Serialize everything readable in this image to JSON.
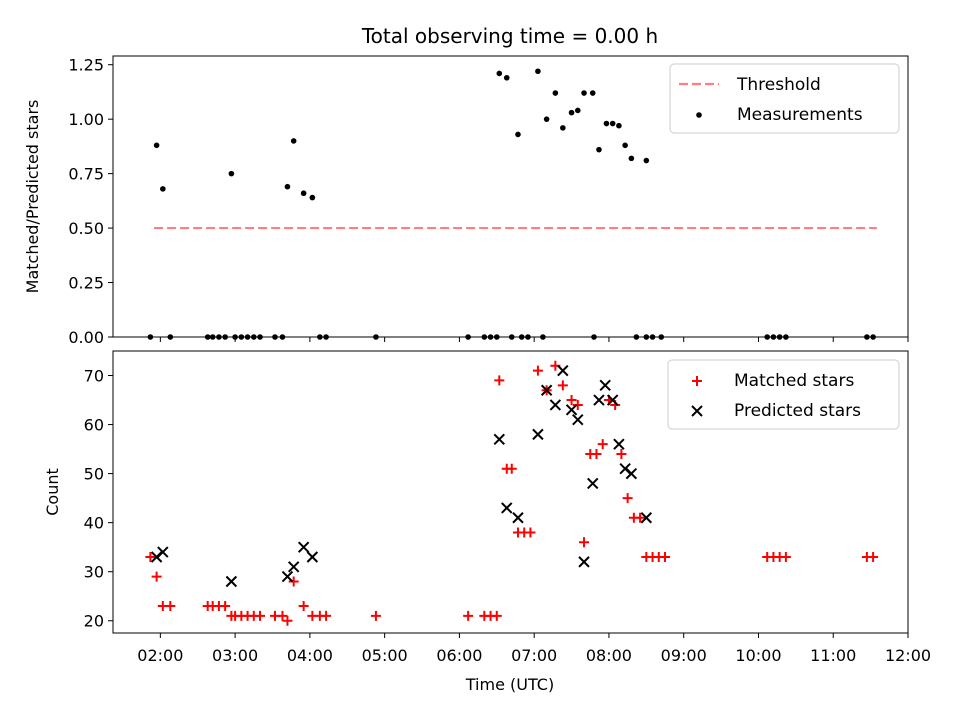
{
  "title": "Total observing time = 0.00 h",
  "chart_data": [
    {
      "type": "scatter",
      "panel": "top",
      "ylabel": "Matched/Predicted stars",
      "ylim": [
        0,
        1.29
      ],
      "yticks": [
        "0.00",
        "0.25",
        "0.50",
        "0.75",
        "1.00",
        "1.25"
      ],
      "threshold": {
        "name": "Threshold",
        "value": 0.5,
        "x_range": [
          "01:55",
          "11:35"
        ],
        "color": "#ff7f7f"
      },
      "series": [
        {
          "name": "Measurements",
          "color": "#000000",
          "marker": "dot",
          "points": [
            [
              "01:57",
              0.88
            ],
            [
              "02:02",
              0.68
            ],
            [
              "02:57",
              0.75
            ],
            [
              "03:42",
              0.69
            ],
            [
              "03:47",
              0.9
            ],
            [
              "03:55",
              0.66
            ],
            [
              "04:02",
              0.64
            ],
            [
              "06:32",
              1.21
            ],
            [
              "06:38",
              1.19
            ],
            [
              "06:47",
              0.93
            ],
            [
              "07:03",
              1.22
            ],
            [
              "07:10",
              1.0
            ],
            [
              "07:17",
              1.12
            ],
            [
              "07:23",
              0.96
            ],
            [
              "07:30",
              1.03
            ],
            [
              "07:35",
              1.04
            ],
            [
              "07:40",
              1.12
            ],
            [
              "07:47",
              1.12
            ],
            [
              "07:52",
              0.86
            ],
            [
              "07:58",
              0.98
            ],
            [
              "08:03",
              0.98
            ],
            [
              "08:08",
              0.97
            ],
            [
              "08:13",
              0.88
            ],
            [
              "08:18",
              0.82
            ],
            [
              "08:30",
              0.81
            ],
            [
              "01:52",
              0
            ],
            [
              "02:08",
              0
            ],
            [
              "02:38",
              0
            ],
            [
              "02:42",
              0
            ],
            [
              "02:47",
              0
            ],
            [
              "02:52",
              0
            ],
            [
              "03:00",
              0
            ],
            [
              "03:05",
              0
            ],
            [
              "03:10",
              0
            ],
            [
              "03:15",
              0
            ],
            [
              "03:20",
              0
            ],
            [
              "03:32",
              0
            ],
            [
              "03:38",
              0
            ],
            [
              "04:08",
              0
            ],
            [
              "04:13",
              0
            ],
            [
              "04:53",
              0
            ],
            [
              "06:07",
              0
            ],
            [
              "06:20",
              0
            ],
            [
              "06:25",
              0
            ],
            [
              "06:30",
              0
            ],
            [
              "06:42",
              0
            ],
            [
              "06:50",
              0
            ],
            [
              "06:55",
              0
            ],
            [
              "07:07",
              0
            ],
            [
              "07:48",
              0
            ],
            [
              "08:22",
              0
            ],
            [
              "08:30",
              0
            ],
            [
              "08:35",
              0
            ],
            [
              "08:42",
              0
            ],
            [
              "10:07",
              0
            ],
            [
              "10:12",
              0
            ],
            [
              "10:17",
              0
            ],
            [
              "10:22",
              0
            ],
            [
              "11:27",
              0
            ],
            [
              "11:32",
              0
            ]
          ]
        }
      ],
      "legend": "top-right"
    },
    {
      "type": "scatter",
      "panel": "bottom",
      "xlabel": "Time (UTC)",
      "ylabel": "Count",
      "xlim": [
        "01:22",
        "12:00"
      ],
      "xticks": [
        "02:00",
        "03:00",
        "04:00",
        "05:00",
        "06:00",
        "07:00",
        "08:00",
        "09:00",
        "10:00",
        "11:00",
        "12:00"
      ],
      "ylim": [
        17.5,
        75
      ],
      "yticks": [
        "20",
        "30",
        "40",
        "50",
        "60",
        "70"
      ],
      "series": [
        {
          "name": "Matched stars",
          "color": "#ff0000",
          "marker": "plus",
          "points": [
            [
              "01:52",
              33
            ],
            [
              "01:57",
              29
            ],
            [
              "02:02",
              23
            ],
            [
              "02:08",
              23
            ],
            [
              "02:38",
              23
            ],
            [
              "02:42",
              23
            ],
            [
              "02:47",
              23
            ],
            [
              "02:52",
              23
            ],
            [
              "02:57",
              21
            ],
            [
              "03:00",
              21
            ],
            [
              "03:05",
              21
            ],
            [
              "03:10",
              21
            ],
            [
              "03:15",
              21
            ],
            [
              "03:20",
              21
            ],
            [
              "03:32",
              21
            ],
            [
              "03:38",
              21
            ],
            [
              "03:42",
              20
            ],
            [
              "03:47",
              28
            ],
            [
              "03:55",
              23
            ],
            [
              "04:02",
              21
            ],
            [
              "04:08",
              21
            ],
            [
              "04:13",
              21
            ],
            [
              "04:53",
              21
            ],
            [
              "06:07",
              21
            ],
            [
              "06:20",
              21
            ],
            [
              "06:25",
              21
            ],
            [
              "06:30",
              21
            ],
            [
              "06:32",
              69
            ],
            [
              "06:38",
              51
            ],
            [
              "06:42",
              51
            ],
            [
              "06:47",
              38
            ],
            [
              "06:52",
              38
            ],
            [
              "06:57",
              38
            ],
            [
              "07:03",
              71
            ],
            [
              "07:10",
              67
            ],
            [
              "07:17",
              72
            ],
            [
              "07:23",
              68
            ],
            [
              "07:30",
              65
            ],
            [
              "07:35",
              64
            ],
            [
              "07:40",
              36
            ],
            [
              "07:45",
              54
            ],
            [
              "07:50",
              54
            ],
            [
              "07:55",
              56
            ],
            [
              "08:00",
              65
            ],
            [
              "08:05",
              64
            ],
            [
              "08:10",
              54
            ],
            [
              "08:15",
              45
            ],
            [
              "08:20",
              41
            ],
            [
              "08:25",
              41
            ],
            [
              "08:30",
              33
            ],
            [
              "08:35",
              33
            ],
            [
              "08:40",
              33
            ],
            [
              "08:45",
              33
            ],
            [
              "10:07",
              33
            ],
            [
              "10:12",
              33
            ],
            [
              "10:17",
              33
            ],
            [
              "10:22",
              33
            ],
            [
              "11:27",
              33
            ],
            [
              "11:32",
              33
            ]
          ]
        },
        {
          "name": "Predicted stars",
          "color": "#000000",
          "marker": "x",
          "points": [
            [
              "01:57",
              33
            ],
            [
              "02:02",
              34
            ],
            [
              "02:57",
              28
            ],
            [
              "03:42",
              29
            ],
            [
              "03:47",
              31
            ],
            [
              "03:55",
              35
            ],
            [
              "04:02",
              33
            ],
            [
              "06:32",
              57
            ],
            [
              "06:38",
              43
            ],
            [
              "06:47",
              41
            ],
            [
              "07:03",
              58
            ],
            [
              "07:10",
              67
            ],
            [
              "07:17",
              64
            ],
            [
              "07:23",
              71
            ],
            [
              "07:30",
              63
            ],
            [
              "07:35",
              61
            ],
            [
              "07:40",
              32
            ],
            [
              "07:47",
              48
            ],
            [
              "07:52",
              65
            ],
            [
              "07:57",
              68
            ],
            [
              "08:03",
              65
            ],
            [
              "08:08",
              56
            ],
            [
              "08:13",
              51
            ],
            [
              "08:18",
              50
            ],
            [
              "08:30",
              41
            ]
          ]
        }
      ],
      "legend": "top-right"
    }
  ]
}
